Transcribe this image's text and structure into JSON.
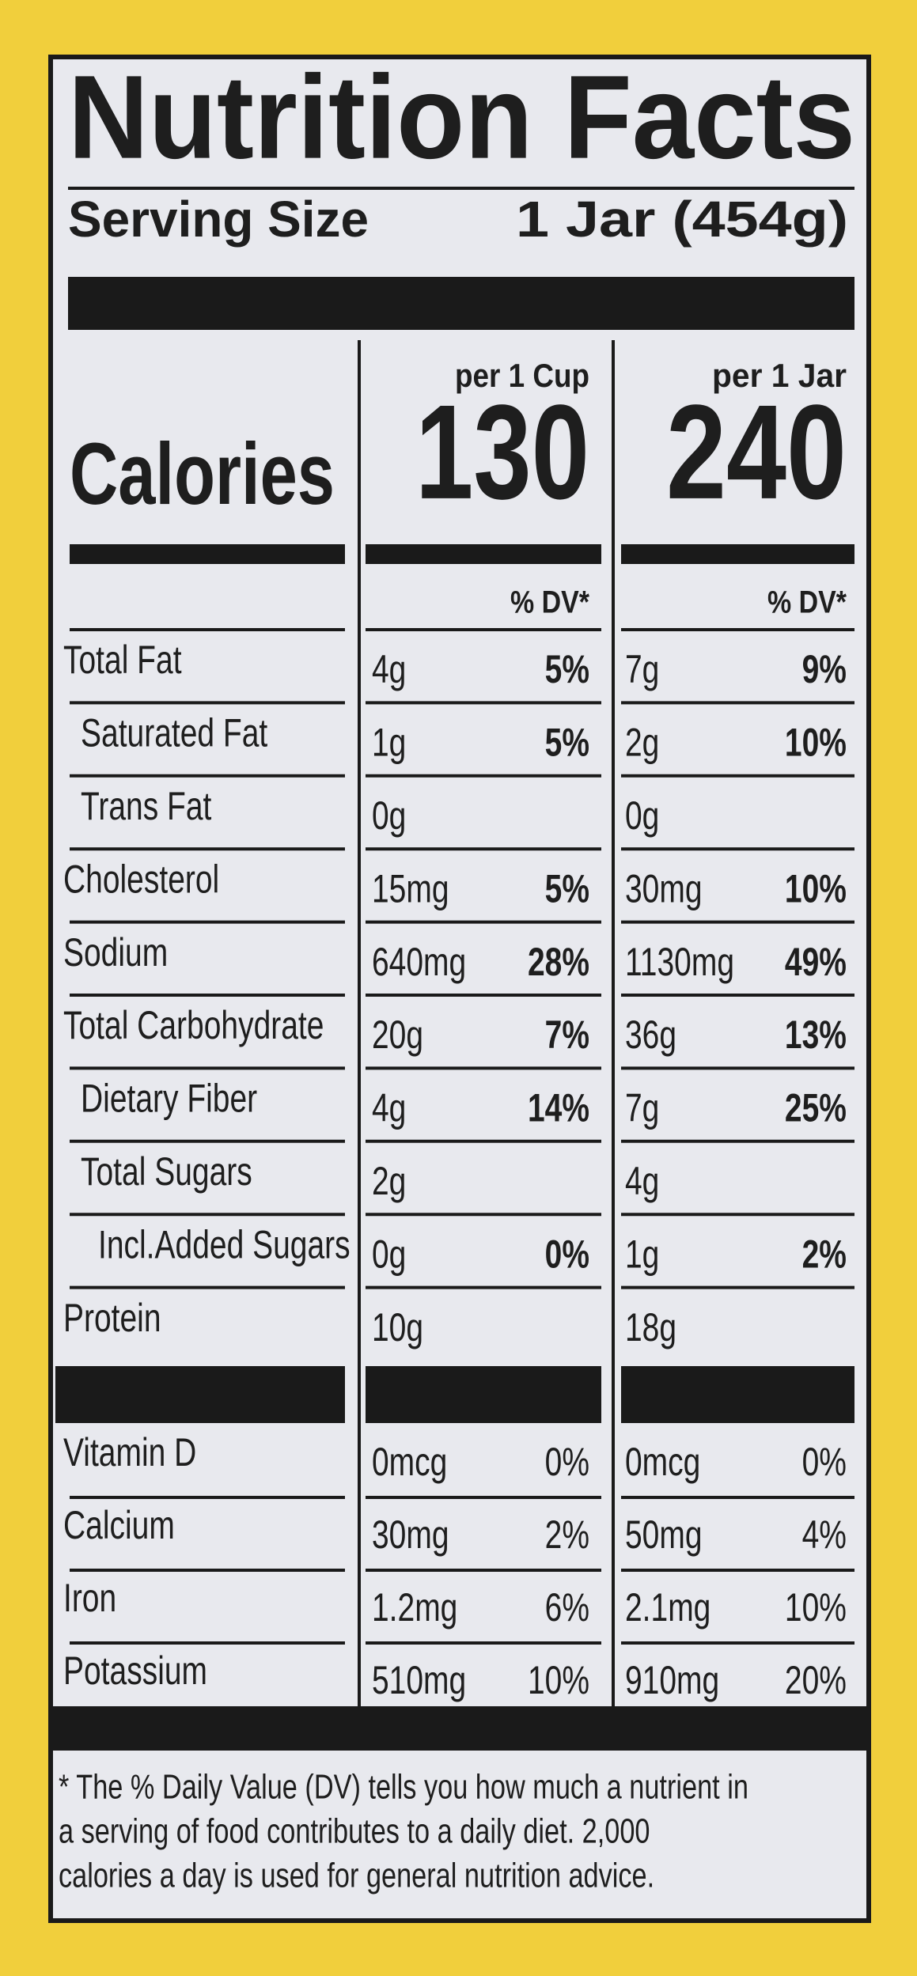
{
  "title": "Nutrition Facts",
  "serving": {
    "label": "Serving Size",
    "value": "1 Jar (454g)"
  },
  "calories_label": "Calories",
  "columns": [
    {
      "header": "per 1 Cup",
      "calories": "130",
      "dv_header": "% DV*"
    },
    {
      "header": "per 1 Jar",
      "calories": "240",
      "dv_header": "% DV*"
    }
  ],
  "nutrients": [
    {
      "name": "Total Fat",
      "cup": {
        "amount": "4g",
        "dv": "5%"
      },
      "jar": {
        "amount": "7g",
        "dv": "9%"
      }
    },
    {
      "name": "Saturated Fat",
      "cup": {
        "amount": "1g",
        "dv": "5%"
      },
      "jar": {
        "amount": "2g",
        "dv": "10%"
      }
    },
    {
      "name": "Trans Fat",
      "cup": {
        "amount": "0g",
        "dv": null
      },
      "jar": {
        "amount": "0g",
        "dv": null
      }
    },
    {
      "name": "Cholesterol",
      "cup": {
        "amount": "15mg",
        "dv": "5%"
      },
      "jar": {
        "amount": "30mg",
        "dv": "10%"
      }
    },
    {
      "name": "Sodium",
      "cup": {
        "amount": "640mg",
        "dv": "28%"
      },
      "jar": {
        "amount": "1130mg",
        "dv": "49%"
      }
    },
    {
      "name": "Total Carbohydrate",
      "cup": {
        "amount": "20g",
        "dv": "7%"
      },
      "jar": {
        "amount": "36g",
        "dv": "13%"
      }
    },
    {
      "name": "Dietary Fiber",
      "cup": {
        "amount": "4g",
        "dv": "14%"
      },
      "jar": {
        "amount": "7g",
        "dv": "25%"
      }
    },
    {
      "name": "Total Sugars",
      "cup": {
        "amount": "2g",
        "dv": null
      },
      "jar": {
        "amount": "4g",
        "dv": null
      }
    },
    {
      "name": "Incl.Added Sugars",
      "cup": {
        "amount": "0g",
        "dv": "0%"
      },
      "jar": {
        "amount": "1g",
        "dv": "2%"
      }
    },
    {
      "name": "Protein",
      "cup": {
        "amount": "10g",
        "dv": null
      },
      "jar": {
        "amount": "18g",
        "dv": null
      }
    }
  ],
  "vitamins": [
    {
      "name": "Vitamin D",
      "cup": {
        "amount": "0mcg",
        "dv": "0%"
      },
      "jar": {
        "amount": "0mcg",
        "dv": "0%"
      }
    },
    {
      "name": "Calcium",
      "cup": {
        "amount": "30mg",
        "dv": "2%"
      },
      "jar": {
        "amount": "50mg",
        "dv": "4%"
      }
    },
    {
      "name": "Iron",
      "cup": {
        "amount": "1.2mg",
        "dv": "6%"
      },
      "jar": {
        "amount": "2.1mg",
        "dv": "10%"
      }
    },
    {
      "name": "Potassium",
      "cup": {
        "amount": "510mg",
        "dv": "10%"
      },
      "jar": {
        "amount": "910mg",
        "dv": "20%"
      }
    }
  ],
  "footnote": [
    "* The % Daily Value (DV) tells you how much a nutrient in",
    "a serving of food contributes to a daily diet. 2,000",
    "calories a day is used for general nutrition advice."
  ]
}
